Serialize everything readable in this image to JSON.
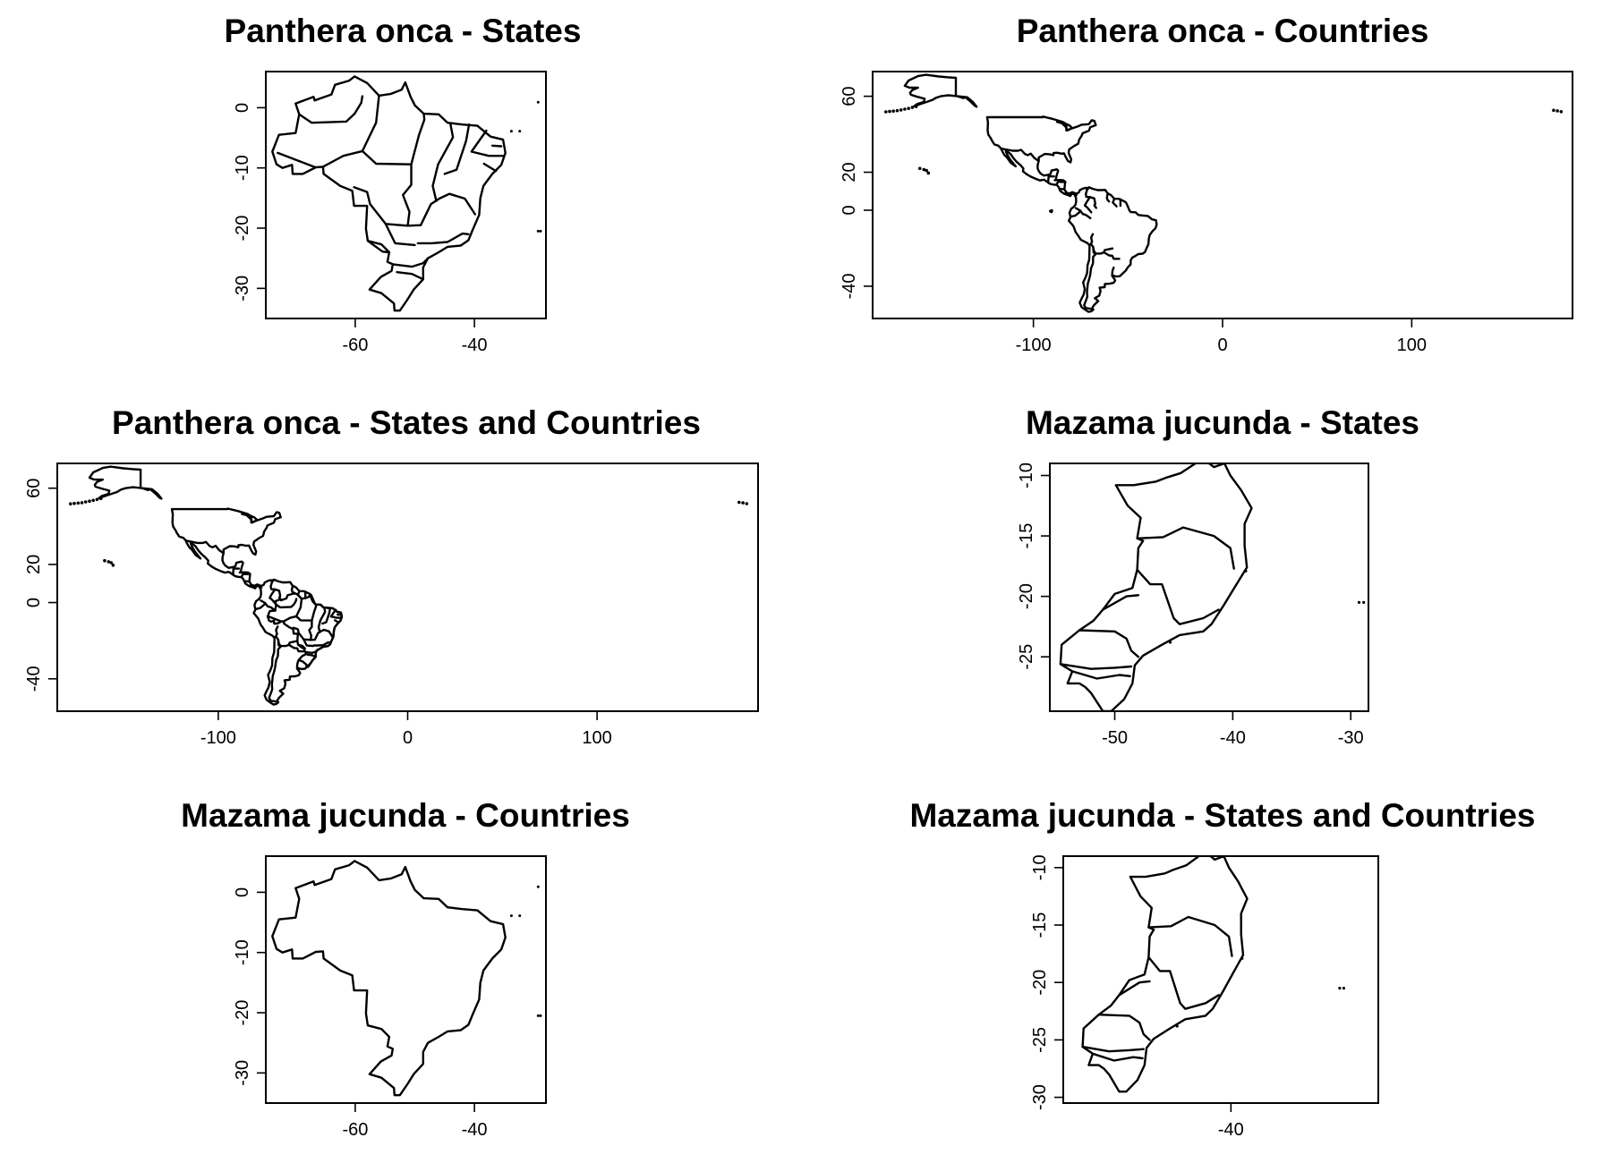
{
  "chart_data": [
    {
      "type": "map",
      "title": "Panthera onca - States",
      "xlim": [
        -75,
        -28
      ],
      "ylim": [
        -35,
        6
      ],
      "x_ticks": [
        -60,
        -40
      ],
      "x_tick_labels": [
        "-60",
        "-40"
      ],
      "y_ticks": [
        0,
        -10,
        -20,
        -30
      ],
      "y_tick_labels": [
        "0",
        "-10",
        "-20",
        "-30"
      ],
      "layers": [
        "brazil-country-outline",
        "brazil-state-borders",
        "atlantic-islands"
      ]
    },
    {
      "type": "map",
      "title": "Panthera onca - Countries",
      "xlim": [
        -185,
        185
      ],
      "ylim": [
        -57,
        73
      ],
      "x_ticks": [
        -100,
        0,
        100
      ],
      "x_tick_labels": [
        "-100",
        "0",
        "100"
      ],
      "y_ticks": [
        60,
        20,
        0,
        -40
      ],
      "y_tick_labels": [
        "60",
        "20",
        "0",
        "-40"
      ],
      "layers": [
        "americas-country-outlines",
        "alaska",
        "hawaii",
        "aleutian-islands",
        "galapagos"
      ]
    },
    {
      "type": "map",
      "title": "Panthera onca - States and Countries",
      "xlim": [
        -185,
        185
      ],
      "ylim": [
        -57,
        73
      ],
      "x_ticks": [
        -100,
        0,
        100
      ],
      "x_tick_labels": [
        "-100",
        "0",
        "100"
      ],
      "y_ticks": [
        60,
        20,
        0,
        -40
      ],
      "y_tick_labels": [
        "60",
        "20",
        "0",
        "-40"
      ],
      "layers": [
        "americas-country-outlines",
        "brazil-state-borders",
        "alaska",
        "hawaii",
        "aleutian-islands"
      ]
    },
    {
      "type": "map",
      "title": "Mazama jucunda - States",
      "xlim": [
        -55.5,
        -28.5
      ],
      "ylim": [
        -29.5,
        -9
      ],
      "x_ticks": [
        -50,
        -40,
        -30
      ],
      "x_tick_labels": [
        "-50",
        "-40",
        "-30"
      ],
      "y_ticks": [
        -10,
        -15,
        -20,
        -25
      ],
      "y_tick_labels": [
        "-10",
        "-15",
        "-20",
        "-25"
      ],
      "layers": [
        "southeast-brazil-states"
      ]
    },
    {
      "type": "map",
      "title": "Mazama jucunda - Countries",
      "xlim": [
        -75,
        -28
      ],
      "ylim": [
        -35,
        6
      ],
      "x_ticks": [
        -60,
        -40
      ],
      "x_tick_labels": [
        "-60",
        "-40"
      ],
      "y_ticks": [
        0,
        -10,
        -20,
        -30
      ],
      "y_tick_labels": [
        "0",
        "-10",
        "-20",
        "-30"
      ],
      "layers": [
        "brazil-country-outline",
        "atlantic-islands"
      ]
    },
    {
      "type": "map",
      "title": "Mazama jucunda - States and Countries",
      "xlim": [
        -56.5,
        -25.5
      ],
      "ylim": [
        -30.5,
        -9
      ],
      "x_ticks": [
        -40
      ],
      "x_tick_labels": [
        "-40"
      ],
      "y_ticks": [
        -10,
        -15,
        -20,
        -25,
        -30
      ],
      "y_tick_labels": [
        "-10",
        "-15",
        "-20",
        "-25",
        "-30"
      ],
      "layers": [
        "southeast-brazil-states"
      ]
    }
  ]
}
